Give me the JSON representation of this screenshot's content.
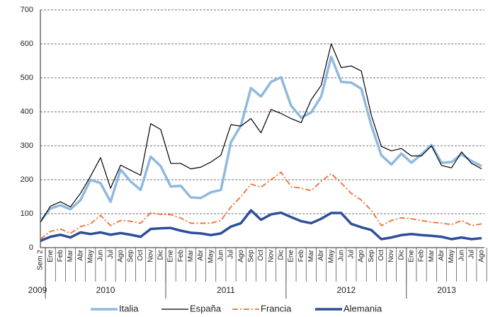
{
  "chart_data": {
    "type": "line",
    "categories": [
      "Sem 2",
      "Ene",
      "Feb",
      "Mar",
      "Abr",
      "May",
      "Jun",
      "Jul",
      "Ago",
      "Sep",
      "Oct",
      "Nov",
      "Dic",
      "Ene",
      "Feb",
      "Mar",
      "Abr",
      "May",
      "Jun",
      "Jul",
      "Ago",
      "Sep",
      "Oct",
      "Nov",
      "Dic",
      "Ene",
      "Feb",
      "Mar",
      "Abr",
      "May",
      "Jun",
      "Jul",
      "Ago",
      "Sep",
      "Oct",
      "Nov",
      "Dic",
      "Ene",
      "Feb",
      "Mar",
      "Abr",
      "May",
      "Jun",
      "Jul",
      "Ago"
    ],
    "year_groups": [
      {
        "label": "2009",
        "months": 1
      },
      {
        "label": "2010",
        "months": 12
      },
      {
        "label": "2011",
        "months": 12
      },
      {
        "label": "2012",
        "months": 12
      },
      {
        "label": "2013",
        "months": 8
      }
    ],
    "series": [
      {
        "name": "Italia",
        "color": "#8fb9e0",
        "width": 3.5,
        "dash": "none",
        "values": [
          78,
          115,
          125,
          113,
          140,
          200,
          190,
          135,
          230,
          195,
          170,
          268,
          240,
          180,
          182,
          148,
          146,
          163,
          170,
          310,
          360,
          470,
          445,
          488,
          502,
          418,
          383,
          398,
          445,
          562,
          488,
          486,
          468,
          360,
          272,
          245,
          277,
          250,
          275,
          302,
          250,
          252,
          275,
          255,
          240
        ]
      },
      {
        "name": "España",
        "color": "#000000",
        "width": 1.2,
        "dash": "none",
        "values": [
          75,
          122,
          135,
          120,
          160,
          210,
          265,
          175,
          243,
          228,
          213,
          365,
          348,
          248,
          248,
          232,
          237,
          252,
          272,
          362,
          358,
          380,
          338,
          407,
          395,
          380,
          368,
          435,
          478,
          600,
          530,
          535,
          520,
          390,
          298,
          285,
          292,
          270,
          270,
          300,
          242,
          235,
          282,
          248,
          232
        ]
      },
      {
        "name": "Francia",
        "color": "#f07030",
        "width": 1.8,
        "dash": "8 3 2 3",
        "values": [
          25,
          48,
          55,
          42,
          62,
          70,
          95,
          65,
          80,
          78,
          72,
          103,
          98,
          97,
          87,
          72,
          72,
          72,
          80,
          120,
          150,
          187,
          178,
          200,
          222,
          180,
          175,
          168,
          195,
          218,
          190,
          160,
          140,
          110,
          65,
          80,
          88,
          85,
          80,
          75,
          72,
          68,
          80,
          65,
          70
        ]
      },
      {
        "name": "Alemania",
        "color": "#2e4e9c",
        "width": 3.5,
        "dash": "none",
        "values": [
          20,
          32,
          38,
          30,
          45,
          40,
          45,
          38,
          43,
          38,
          32,
          55,
          57,
          58,
          50,
          44,
          42,
          37,
          42,
          62,
          72,
          110,
          82,
          98,
          103,
          90,
          78,
          72,
          85,
          102,
          102,
          70,
          60,
          52,
          25,
          30,
          37,
          40,
          37,
          35,
          32,
          25,
          30,
          25,
          28
        ]
      }
    ],
    "ylim": [
      0,
      700
    ],
    "yticks": [
      0,
      100,
      200,
      300,
      400,
      500,
      600,
      700
    ],
    "grid": true,
    "legend": "bottom"
  }
}
